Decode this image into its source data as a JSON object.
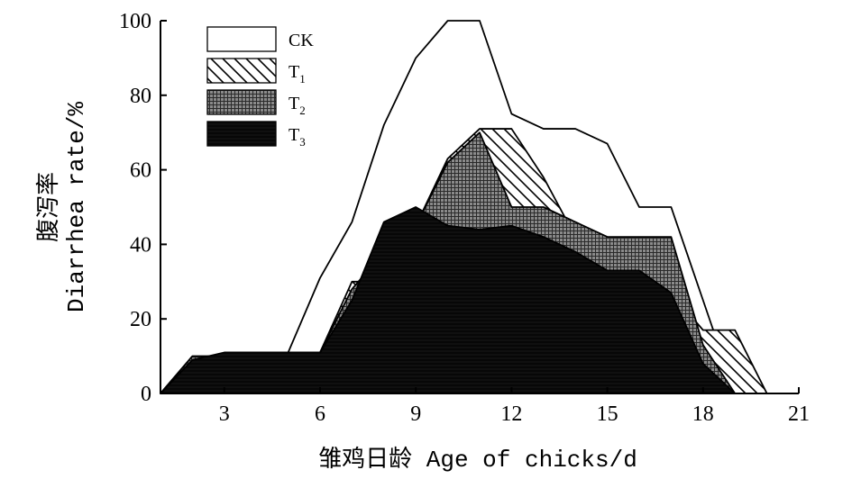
{
  "chart_data": {
    "type": "area",
    "xlabel": "雏鸡日龄 Age of chicks/d",
    "ylabel_cn": "腹泻率",
    "ylabel_en": "Diarrhea rate/%",
    "xlim": [
      1,
      21
    ],
    "ylim": [
      0,
      100
    ],
    "xticks": [
      3,
      6,
      9,
      12,
      15,
      18,
      21
    ],
    "yticks": [
      0,
      20,
      40,
      60,
      80,
      100
    ],
    "legend_position": "top-left",
    "series": [
      {
        "name": "CK",
        "name_sub": "",
        "fill": "white",
        "x": [
          1,
          2,
          3,
          4,
          5,
          6,
          7,
          8,
          9,
          10,
          11,
          12,
          13,
          14,
          15,
          16,
          17,
          18,
          19,
          20
        ],
        "values": [
          0,
          0,
          0,
          0,
          11,
          31,
          46,
          72,
          90,
          100,
          100,
          75,
          71,
          71,
          67,
          50,
          50,
          25,
          0,
          0
        ]
      },
      {
        "name": "T",
        "name_sub": "1",
        "fill": "diagonal",
        "x": [
          1,
          2,
          3,
          4,
          5,
          6,
          7,
          8,
          9,
          10,
          11,
          12,
          13,
          14,
          15,
          16,
          17,
          18,
          19,
          20
        ],
        "values": [
          0,
          10,
          10,
          10,
          11,
          11,
          30,
          30,
          45,
          63,
          71,
          71,
          58,
          42,
          38,
          29,
          27,
          17,
          17,
          0
        ]
      },
      {
        "name": "T",
        "name_sub": "2",
        "fill": "grid",
        "x": [
          1,
          2,
          3,
          4,
          5,
          6,
          7,
          8,
          9,
          10,
          11,
          12,
          13,
          14,
          15,
          16,
          17,
          18,
          19
        ],
        "values": [
          0,
          10,
          10,
          10,
          11,
          11,
          28,
          38,
          45,
          62,
          70,
          50,
          50,
          46,
          42,
          42,
          42,
          13,
          0
        ]
      },
      {
        "name": "T",
        "name_sub": "3",
        "fill": "black",
        "x": [
          1,
          2,
          3,
          4,
          5,
          6,
          7,
          8,
          9,
          10,
          11,
          12,
          13,
          14,
          15,
          16,
          17,
          18,
          19
        ],
        "values": [
          0,
          9,
          11,
          11,
          11,
          11,
          25,
          46,
          50,
          45,
          44,
          45,
          42,
          38,
          33,
          33,
          27,
          8,
          0
        ]
      }
    ]
  }
}
